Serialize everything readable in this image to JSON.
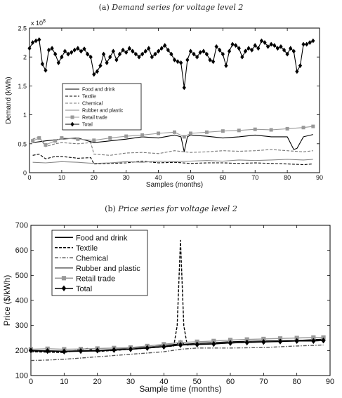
{
  "chart_data": [
    {
      "type": "line",
      "panel_label": "(a)",
      "title": "Demand series for voltage level 2",
      "xlabel": "Samples (months)",
      "ylabel": "Demand (kWh)",
      "y_multiplier": "x 10^8",
      "xlim": [
        0,
        90
      ],
      "ylim": [
        0,
        2.5
      ],
      "xticks": [
        0,
        10,
        20,
        30,
        40,
        50,
        60,
        70,
        80,
        90
      ],
      "yticks": [
        0,
        0.5,
        1,
        1.5,
        2,
        2.5
      ],
      "ytick_labels": [
        "0",
        "0.5",
        "1",
        "1.5",
        "2",
        "2.5"
      ],
      "legend_position": "center-left",
      "series": [
        {
          "name": "Food and drink",
          "color": "#000000",
          "style": "solid",
          "marker": "none",
          "x": [
            1,
            5,
            10,
            15,
            20,
            25,
            30,
            35,
            40,
            45,
            47,
            48,
            49,
            50,
            55,
            60,
            65,
            70,
            75,
            80,
            82,
            83,
            85,
            88
          ],
          "y": [
            0.52,
            0.55,
            0.58,
            0.6,
            0.52,
            0.55,
            0.58,
            0.62,
            0.6,
            0.65,
            0.62,
            0.36,
            0.62,
            0.65,
            0.63,
            0.6,
            0.62,
            0.65,
            0.62,
            0.62,
            0.4,
            0.42,
            0.62,
            0.66
          ]
        },
        {
          "name": "Textile",
          "color": "#000000",
          "style": "dashed",
          "marker": "none",
          "x": [
            1,
            3,
            5,
            8,
            10,
            15,
            19,
            20,
            25,
            30,
            35,
            40,
            45,
            50,
            55,
            60,
            65,
            70,
            75,
            80,
            85,
            88
          ],
          "y": [
            0.3,
            0.32,
            0.24,
            0.28,
            0.28,
            0.25,
            0.26,
            0.15,
            0.16,
            0.17,
            0.2,
            0.17,
            0.18,
            0.16,
            0.17,
            0.17,
            0.16,
            0.17,
            0.16,
            0.15,
            0.14,
            0.15
          ]
        },
        {
          "name": "Chemical",
          "color": "#777777",
          "style": "dashed",
          "marker": "none",
          "x": [
            1,
            3,
            5,
            8,
            10,
            15,
            19,
            20,
            25,
            30,
            35,
            40,
            45,
            50,
            55,
            60,
            65,
            70,
            75,
            80,
            85,
            88
          ],
          "y": [
            0.58,
            0.62,
            0.45,
            0.5,
            0.52,
            0.5,
            0.52,
            0.32,
            0.3,
            0.34,
            0.35,
            0.33,
            0.38,
            0.35,
            0.36,
            0.38,
            0.37,
            0.38,
            0.4,
            0.38,
            0.36,
            0.38
          ]
        },
        {
          "name": "Rubber and plastic",
          "color": "#888888",
          "style": "solid",
          "marker": "none",
          "x": [
            1,
            5,
            10,
            15,
            20,
            25,
            30,
            35,
            40,
            45,
            50,
            55,
            60,
            65,
            70,
            75,
            80,
            85,
            88
          ],
          "y": [
            0.18,
            0.17,
            0.19,
            0.18,
            0.16,
            0.17,
            0.19,
            0.18,
            0.2,
            0.19,
            0.2,
            0.21,
            0.2,
            0.22,
            0.21,
            0.22,
            0.23,
            0.22,
            0.23
          ]
        },
        {
          "name": "Retail trade",
          "color": "#999999",
          "style": "solid",
          "marker": "square",
          "x": [
            1,
            3,
            5,
            8,
            10,
            15,
            20,
            25,
            30,
            35,
            40,
            45,
            48,
            50,
            55,
            60,
            65,
            70,
            75,
            80,
            85,
            88
          ],
          "y": [
            0.55,
            0.6,
            0.48,
            0.55,
            0.6,
            0.58,
            0.56,
            0.6,
            0.63,
            0.65,
            0.68,
            0.7,
            0.62,
            0.68,
            0.7,
            0.72,
            0.73,
            0.75,
            0.74,
            0.76,
            0.78,
            0.8
          ]
        },
        {
          "name": "Total",
          "color": "#000000",
          "style": "solid",
          "marker": "diamond",
          "x": [
            0,
            1,
            2,
            3,
            4,
            5,
            6,
            7,
            8,
            9,
            10,
            11,
            12,
            13,
            14,
            15,
            16,
            17,
            18,
            19,
            20,
            21,
            22,
            23,
            24,
            25,
            26,
            27,
            28,
            29,
            30,
            31,
            32,
            33,
            34,
            35,
            36,
            37,
            38,
            39,
            40,
            41,
            42,
            43,
            44,
            45,
            46,
            47,
            48,
            49,
            50,
            51,
            52,
            53,
            54,
            55,
            56,
            57,
            58,
            59,
            60,
            61,
            62,
            63,
            64,
            65,
            66,
            67,
            68,
            69,
            70,
            71,
            72,
            73,
            74,
            75,
            76,
            77,
            78,
            79,
            80,
            81,
            82,
            83,
            84,
            85,
            86,
            87,
            88
          ],
          "y": [
            2.15,
            2.25,
            2.28,
            2.3,
            1.88,
            1.77,
            2.12,
            2.15,
            2.05,
            1.9,
            2.0,
            2.1,
            2.05,
            2.08,
            2.12,
            2.15,
            2.1,
            2.14,
            2.05,
            2.0,
            1.7,
            1.75,
            1.85,
            2.05,
            1.9,
            2.0,
            2.1,
            1.95,
            2.05,
            2.12,
            2.08,
            2.15,
            2.1,
            2.05,
            2.0,
            2.05,
            2.1,
            2.15,
            2.0,
            2.05,
            2.1,
            2.15,
            2.2,
            2.12,
            2.05,
            1.95,
            1.92,
            1.9,
            1.47,
            1.95,
            2.1,
            2.05,
            2.0,
            2.08,
            2.1,
            2.05,
            1.95,
            1.92,
            2.18,
            2.12,
            2.05,
            1.85,
            2.1,
            2.22,
            2.2,
            2.15,
            2.0,
            2.1,
            2.15,
            2.12,
            2.2,
            2.15,
            2.28,
            2.25,
            2.18,
            2.22,
            2.2,
            2.15,
            2.18,
            2.12,
            2.05,
            2.15,
            2.1,
            1.75,
            1.85,
            2.22,
            2.22,
            2.25,
            2.28
          ]
        }
      ]
    },
    {
      "type": "line",
      "panel_label": "(b)",
      "title": "Price series for voltage level 2",
      "xlabel": "Sample time (months)",
      "ylabel": "Price ($/kWh)",
      "xlim": [
        0,
        90
      ],
      "ylim": [
        100,
        700
      ],
      "xticks": [
        0,
        10,
        20,
        30,
        40,
        50,
        60,
        70,
        80,
        90
      ],
      "yticks": [
        100,
        200,
        300,
        400,
        500,
        600,
        700
      ],
      "legend_position": "top-left",
      "series": [
        {
          "name": "Food and drink",
          "color": "#000000",
          "style": "solid",
          "marker": "none",
          "x": [
            0,
            10,
            20,
            30,
            40,
            44,
            45,
            46,
            50,
            60,
            70,
            80,
            88
          ],
          "y": [
            198,
            196,
            198,
            205,
            220,
            225,
            240,
            225,
            228,
            235,
            238,
            240,
            245
          ]
        },
        {
          "name": "Textile",
          "color": "#000000",
          "style": "dashed",
          "marker": "none",
          "x": [
            0,
            10,
            17,
            20,
            30,
            40,
            43,
            44,
            45,
            46,
            47,
            50,
            60,
            70,
            80,
            88
          ],
          "y": [
            195,
            192,
            208,
            196,
            205,
            215,
            218,
            300,
            640,
            300,
            222,
            225,
            230,
            235,
            240,
            242
          ]
        },
        {
          "name": "Chemical",
          "color": "#555555",
          "style": "dashdot",
          "marker": "none",
          "x": [
            0,
            5,
            10,
            20,
            30,
            40,
            45,
            50,
            60,
            70,
            80,
            88
          ],
          "y": [
            160,
            162,
            165,
            175,
            185,
            195,
            205,
            210,
            210,
            212,
            218,
            222
          ]
        },
        {
          "name": "Rubber and plastic",
          "color": "#555555",
          "style": "solid",
          "marker": "none",
          "x": [
            0,
            10,
            20,
            30,
            40,
            45,
            50,
            60,
            70,
            80,
            88
          ],
          "y": [
            200,
            198,
            200,
            210,
            218,
            222,
            225,
            232,
            235,
            238,
            240
          ]
        },
        {
          "name": "Retail trade",
          "color": "#999999",
          "style": "solid",
          "marker": "square",
          "x": [
            0,
            5,
            10,
            15,
            20,
            25,
            30,
            35,
            40,
            45,
            50,
            55,
            60,
            65,
            70,
            75,
            80,
            85,
            88
          ],
          "y": [
            205,
            207,
            205,
            206,
            208,
            210,
            212,
            218,
            225,
            232,
            235,
            238,
            242,
            244,
            246,
            248,
            250,
            252,
            252
          ]
        },
        {
          "name": "Total",
          "color": "#000000",
          "style": "solid",
          "marker": "diamond",
          "x": [
            0,
            5,
            10,
            15,
            20,
            25,
            30,
            35,
            40,
            45,
            50,
            55,
            60,
            65,
            70,
            75,
            80,
            85,
            88
          ],
          "y": [
            200,
            198,
            196,
            198,
            200,
            202,
            205,
            210,
            215,
            222,
            224,
            226,
            230,
            232,
            234,
            236,
            238,
            238,
            240
          ]
        }
      ]
    }
  ]
}
